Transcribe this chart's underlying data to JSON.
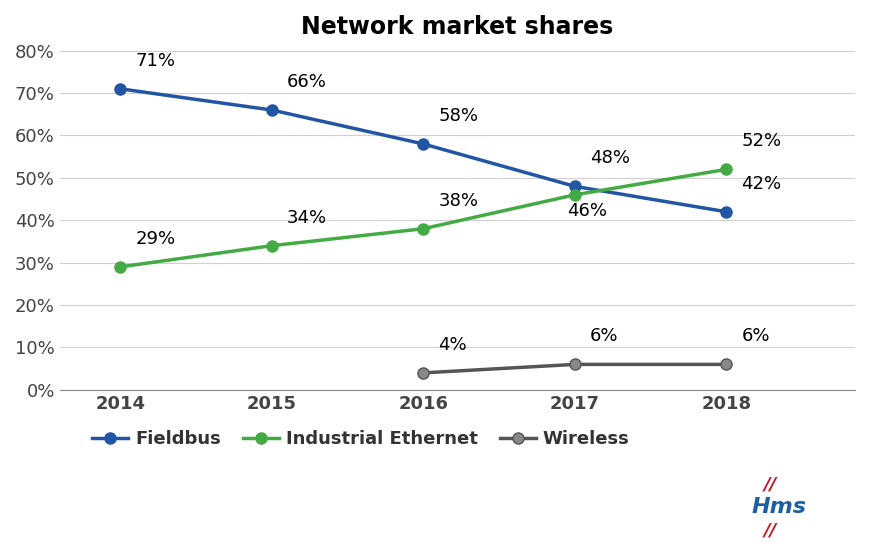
{
  "title": "Network market shares",
  "years": [
    2014,
    2015,
    2016,
    2017,
    2018
  ],
  "fieldbus": [
    71,
    66,
    58,
    48,
    42
  ],
  "industrial_ethernet": [
    29,
    34,
    38,
    46,
    52
  ],
  "wireless_years": [
    2016,
    2017,
    2018
  ],
  "wireless": [
    4,
    6,
    6
  ],
  "fieldbus_labels": [
    "71%",
    "66%",
    "58%",
    "48%",
    "42%"
  ],
  "ethernet_labels": [
    "29%",
    "34%",
    "38%",
    "46%",
    "52%"
  ],
  "wireless_labels": [
    "4%",
    "6%",
    "6%"
  ],
  "fieldbus_label_xoff": [
    0.1,
    0.1,
    0.1,
    0.1,
    0.1
  ],
  "fieldbus_label_yoff": [
    4.5,
    4.5,
    4.5,
    4.5,
    4.5
  ],
  "ethernet_label_xoff": [
    0.1,
    0.1,
    0.1,
    -0.05,
    0.1
  ],
  "ethernet_label_yoff": [
    4.5,
    4.5,
    4.5,
    -6.0,
    4.5
  ],
  "wireless_label_xoff": [
    0.1,
    0.1,
    0.1
  ],
  "wireless_label_yoff": [
    4.5,
    4.5,
    4.5
  ],
  "fieldbus_color": "#2255A4",
  "ethernet_color": "#44AA44",
  "wireless_color": "#555555",
  "marker_fill_wireless": "#888888",
  "background_color": "#FFFFFF",
  "grid_color": "#D0D0D0",
  "ylim": [
    0,
    80
  ],
  "yticks": [
    0,
    10,
    20,
    30,
    40,
    50,
    60,
    70,
    80
  ],
  "ytick_labels": [
    "0%",
    "10%",
    "20%",
    "30%",
    "40%",
    "50%",
    "60%",
    "70%",
    "80%"
  ],
  "title_fontsize": 17,
  "tick_fontsize": 13,
  "legend_fontsize": 13,
  "annotation_fontsize": 13,
  "line_width": 2.5,
  "marker_size": 8,
  "hms_color_blue": "#1C5FA5",
  "hms_color_red": "#CC1122"
}
